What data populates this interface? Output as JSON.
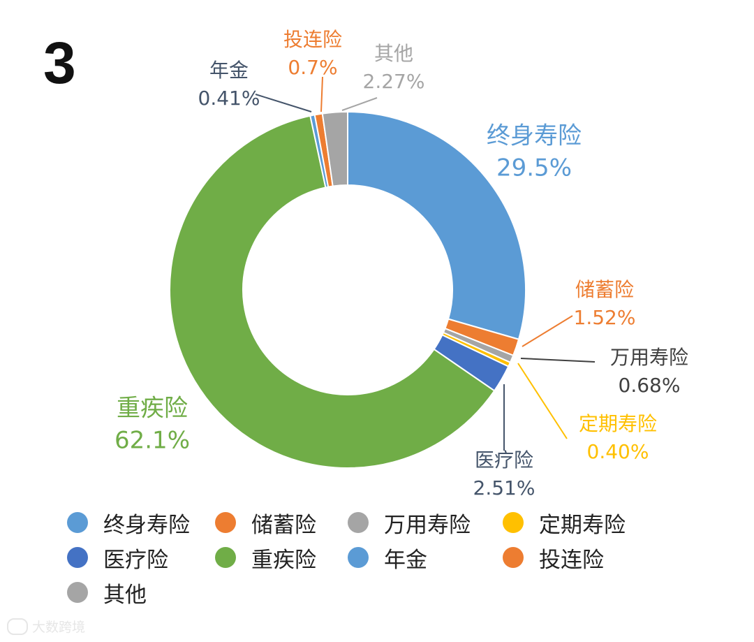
{
  "panel_number": "3",
  "watermark": "大数跨境",
  "chart_data": {
    "type": "pie",
    "donut": true,
    "title": "",
    "slices": [
      {
        "name": "终身寿险",
        "value": 29.5,
        "label": "29.5%",
        "color": "#5b9bd5"
      },
      {
        "name": "储蓄险",
        "value": 1.52,
        "label": "1.52%",
        "color": "#ed7d31"
      },
      {
        "name": "万用寿险",
        "value": 0.68,
        "label": "0.68%",
        "color": "#a5a5a5"
      },
      {
        "name": "定期寿险",
        "value": 0.4,
        "label": "0.40%",
        "color": "#ffc000"
      },
      {
        "name": "医疗险",
        "value": 2.51,
        "label": "2.51%",
        "color": "#4472c4"
      },
      {
        "name": "重疾险",
        "value": 62.1,
        "label": "62.1%",
        "color": "#70ad47"
      },
      {
        "name": "年金",
        "value": 0.41,
        "label": "0.41%",
        "color": "#5b9bd5"
      },
      {
        "name": "投连险",
        "value": 0.7,
        "label": "0.7%",
        "color": "#ed7d31"
      },
      {
        "name": "其他",
        "value": 2.27,
        "label": "2.27%",
        "color": "#a5a5a5"
      }
    ],
    "label_colors": {
      "终身寿险": "#5b9bd5",
      "储蓄险": "#ed7d31",
      "万用寿险": "#404040",
      "定期寿险": "#ffc000",
      "医疗险": "#44546a",
      "重疾险": "#70ad47",
      "年金": "#44546a",
      "投连险": "#ed7d31",
      "其他": "#a5a5a5"
    },
    "legend": {
      "placement": "bottom",
      "items": [
        {
          "name": "终身寿险",
          "color": "#5b9bd5"
        },
        {
          "name": "储蓄险",
          "color": "#ed7d31"
        },
        {
          "name": "万用寿险",
          "color": "#a5a5a5"
        },
        {
          "name": "定期寿险",
          "color": "#ffc000"
        },
        {
          "name": "医疗险",
          "color": "#4472c4"
        },
        {
          "name": "重疾险",
          "color": "#70ad47"
        },
        {
          "name": "年金",
          "color": "#5b9bd5"
        },
        {
          "name": "投连险",
          "color": "#ed7d31"
        },
        {
          "name": "其他",
          "color": "#a5a5a5"
        }
      ]
    }
  }
}
